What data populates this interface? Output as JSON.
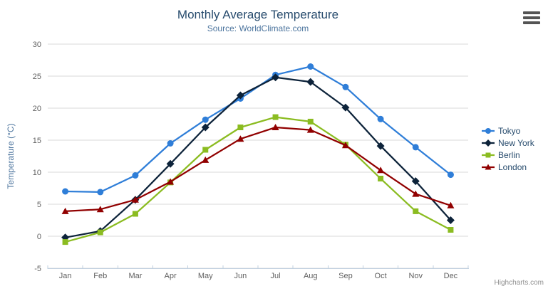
{
  "chart": {
    "title": "Monthly Average Temperature",
    "subtitle": "Source: WorldClimate.com",
    "credits": "Highcharts.com",
    "export_icon": "hamburger-menu"
  },
  "chart_data": {
    "type": "line",
    "title": "Monthly Average Temperature",
    "subtitle": "Source: WorldClimate.com",
    "categories": [
      "Jan",
      "Feb",
      "Mar",
      "Apr",
      "May",
      "Jun",
      "Jul",
      "Aug",
      "Sep",
      "Oct",
      "Nov",
      "Dec"
    ],
    "xlabel": "",
    "ylabel": "Temperature (°C)",
    "ylim": [
      -5,
      30
    ],
    "ytick_interval": 5,
    "grid": true,
    "legend_position": "right",
    "series": [
      {
        "name": "Tokyo",
        "color": "#2f7ed8",
        "marker": "circle",
        "values": [
          7.0,
          6.9,
          9.5,
          14.5,
          18.2,
          21.5,
          25.2,
          26.5,
          23.3,
          18.3,
          13.9,
          9.6
        ]
      },
      {
        "name": "New York",
        "color": "#0d233a",
        "marker": "diamond",
        "values": [
          -0.2,
          0.8,
          5.7,
          11.3,
          17.0,
          22.0,
          24.8,
          24.1,
          20.1,
          14.1,
          8.6,
          2.5
        ]
      },
      {
        "name": "Berlin",
        "color": "#8bbc21",
        "marker": "square",
        "values": [
          -0.9,
          0.6,
          3.5,
          8.4,
          13.5,
          17.0,
          18.6,
          17.9,
          14.3,
          9.0,
          3.9,
          1.0
        ]
      },
      {
        "name": "London",
        "color": "#910000",
        "marker": "triangle",
        "values": [
          3.9,
          4.2,
          5.7,
          8.5,
          11.9,
          15.2,
          17.0,
          16.6,
          14.2,
          10.3,
          6.6,
          4.8
        ]
      }
    ]
  },
  "colors": {
    "background": "#ffffff",
    "title_text": "#274b6d",
    "subtitle_text": "#4d759e",
    "axis_title_text": "#4d759e",
    "tick_label_text": "#606060",
    "grid_line": "#d8d8d8",
    "axis_line": "#c0d0e0",
    "legend_text": "#274b6d",
    "credits_text": "#909090"
  }
}
